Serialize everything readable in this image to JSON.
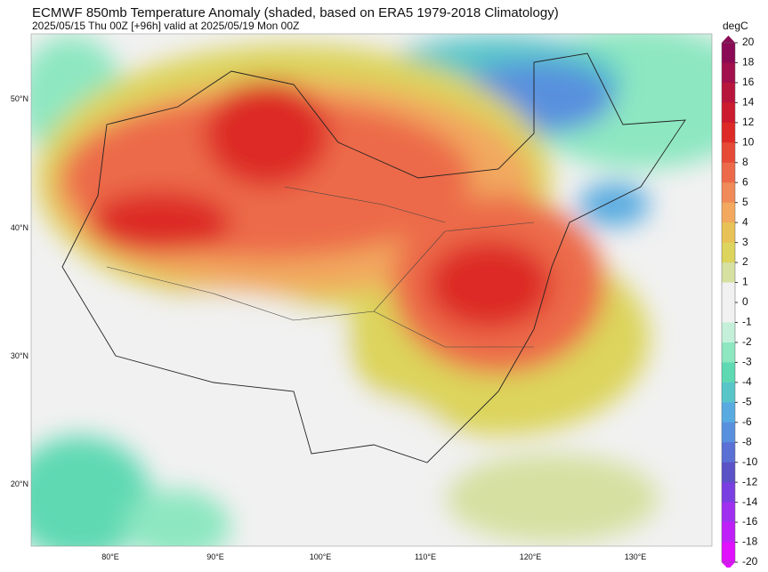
{
  "title": "ECMWF 850mb Temperature Anomaly (shaded, based on ERA5 1979-2018 Climatology)",
  "subtitle": "2025/05/15 Thu 00Z [+96h] valid at 2025/05/19 Mon 00Z",
  "colorbar": {
    "unit": "degC",
    "levels": [
      20,
      18,
      16,
      14,
      12,
      10,
      8,
      6,
      5,
      4,
      3,
      2,
      1,
      0,
      -1,
      -2,
      -3,
      -4,
      -5,
      -6,
      -8,
      -10,
      -12,
      -14,
      -16,
      -18,
      -20
    ],
    "colors": [
      "#8a0a55",
      "#a10f4c",
      "#b8153d",
      "#cc1b2e",
      "#dd2a26",
      "#e64a36",
      "#ec6a4a",
      "#f08a58",
      "#f2a85e",
      "#e8c257",
      "#dcd45c",
      "#d6e0a0",
      "#f1f1f1",
      "#f1f1f1",
      "#c4f0da",
      "#8de7c1",
      "#5ed9b2",
      "#58c6c9",
      "#58abe0",
      "#5890de",
      "#5a70d4",
      "#5a52c6",
      "#7a3fe0",
      "#a030f0",
      "#c020f8",
      "#e010ff"
    ]
  },
  "map": {
    "lat_labels": [
      "50°N",
      "40°N",
      "30°N",
      "20°N"
    ],
    "lon_labels": [
      "80°E",
      "90°E",
      "100°E",
      "110°E",
      "120°E",
      "130°E"
    ]
  }
}
